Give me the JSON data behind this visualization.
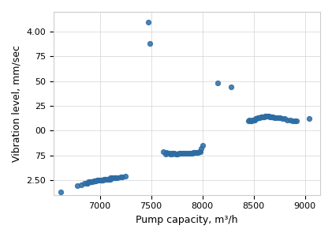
{
  "xlabel": "Pump capacity, m³/h",
  "ylabel": "Vibration level, mm/sec",
  "dot_color": "#2e6da4",
  "dot_size": 18,
  "alpha": 0.85,
  "xlim": [
    6550,
    9150
  ],
  "ylim": [
    2.35,
    4.2
  ],
  "xticks": [
    7000,
    7500,
    8000,
    8500,
    9000
  ],
  "ytick_vals": [
    2.5,
    2.75,
    3.0,
    3.25,
    3.5,
    3.75,
    4.0
  ],
  "ytick_labels": [
    "2.50",
    "75",
    "00",
    "25",
    "50",
    "75",
    "4.00"
  ],
  "scatter_data": {
    "x": [
      6620,
      6780,
      6820,
      6850,
      6870,
      6880,
      6890,
      6900,
      6910,
      6920,
      6930,
      6940,
      6950,
      6960,
      6960,
      6970,
      6980,
      6990,
      7000,
      7010,
      7020,
      7030,
      7030,
      7040,
      7050,
      7060,
      7070,
      7080,
      7090,
      7100,
      7100,
      7110,
      7130,
      7140,
      7150,
      7160,
      7170,
      7200,
      7220,
      7250,
      7470,
      7490,
      7620,
      7640,
      7650,
      7660,
      7670,
      7680,
      7690,
      7700,
      7700,
      7710,
      7720,
      7730,
      7740,
      7750,
      7760,
      7770,
      7780,
      7790,
      7800,
      7810,
      7820,
      7830,
      7840,
      7850,
      7860,
      7870,
      7880,
      7890,
      7900,
      7910,
      7920,
      7930,
      7940,
      7950,
      7960,
      7970,
      7980,
      7990,
      8000,
      8150,
      8280,
      8450,
      8460,
      8470,
      8480,
      8490,
      8500,
      8510,
      8520,
      8530,
      8540,
      8550,
      8560,
      8570,
      8580,
      8590,
      8600,
      8610,
      8620,
      8630,
      8640,
      8650,
      8660,
      8670,
      8680,
      8690,
      8700,
      8720,
      8740,
      8760,
      8780,
      8800,
      8830,
      8860,
      8880,
      8900,
      8920,
      9040
    ],
    "y": [
      2.38,
      2.44,
      2.45,
      2.47,
      2.47,
      2.47,
      2.48,
      2.48,
      2.48,
      2.48,
      2.48,
      2.49,
      2.49,
      2.49,
      2.49,
      2.5,
      2.5,
      2.5,
      2.5,
      2.5,
      2.5,
      2.5,
      2.5,
      2.51,
      2.51,
      2.51,
      2.51,
      2.51,
      2.51,
      2.51,
      2.52,
      2.52,
      2.52,
      2.52,
      2.52,
      2.52,
      2.52,
      2.53,
      2.53,
      2.54,
      4.1,
      3.88,
      2.79,
      2.76,
      2.78,
      2.77,
      2.77,
      2.77,
      2.76,
      2.76,
      2.77,
      2.77,
      2.77,
      2.77,
      2.76,
      2.76,
      2.76,
      2.77,
      2.77,
      2.77,
      2.77,
      2.77,
      2.77,
      2.77,
      2.77,
      2.77,
      2.77,
      2.77,
      2.77,
      2.77,
      2.77,
      2.78,
      2.78,
      2.78,
      2.78,
      2.78,
      2.78,
      2.79,
      2.79,
      2.82,
      2.85,
      3.48,
      3.44,
      3.1,
      3.11,
      3.1,
      3.1,
      3.11,
      3.11,
      3.11,
      3.12,
      3.12,
      3.13,
      3.13,
      3.13,
      3.14,
      3.14,
      3.14,
      3.14,
      3.15,
      3.15,
      3.15,
      3.15,
      3.15,
      3.14,
      3.14,
      3.14,
      3.14,
      3.13,
      3.13,
      3.13,
      3.13,
      3.12,
      3.12,
      3.11,
      3.11,
      3.1,
      3.1,
      3.1,
      3.12
    ]
  }
}
